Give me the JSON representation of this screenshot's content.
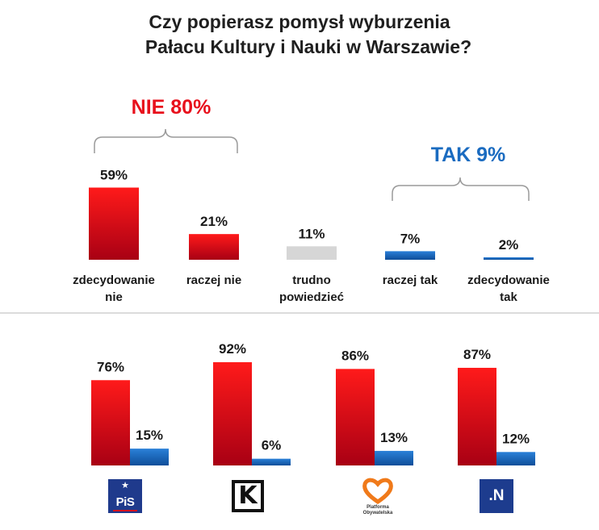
{
  "title": {
    "line1": "Czy popierasz pomysł wyburzenia",
    "line2": "Pałacu  Kultury i Nauki w Warszawie?"
  },
  "colors": {
    "red": "#e8101c",
    "blue": "#1a63b8",
    "gray": "#d6d6d6",
    "nie_text": "#e8101c",
    "tak_text": "#1a6bc0"
  },
  "groups": {
    "nie": "NIE 80%",
    "tak": "TAK 9%"
  },
  "chart_data": [
    {
      "type": "bar",
      "title": "Czy popierasz pomysł wyburzenia Pałacu Kultury i Nauki w Warszawie?",
      "categories": [
        [
          "zdecydowanie",
          "nie"
        ],
        [
          "raczej nie"
        ],
        [
          "trudno",
          "powiedzieć"
        ],
        [
          "raczej tak"
        ],
        [
          "zdecydowanie",
          "tak"
        ]
      ],
      "values": [
        59,
        21,
        11,
        7,
        2
      ],
      "labels": [
        "59%",
        "21%",
        "11%",
        "7%",
        "2%"
      ],
      "bar_colors": [
        "red",
        "red",
        "gray",
        "blue",
        "blue"
      ],
      "ylim": [
        0,
        60
      ],
      "xlabel": "",
      "ylabel": ""
    },
    {
      "type": "bar",
      "categories": [
        "PiS",
        "Kukiz'15",
        "Platforma Obywatelska",
        "Nowoczesna"
      ],
      "series": [
        {
          "name": "NIE",
          "values": [
            76,
            92,
            86,
            87
          ],
          "labels": [
            "76%",
            "92%",
            "86%",
            "87%"
          ],
          "color": "red"
        },
        {
          "name": "TAK",
          "values": [
            15,
            6,
            13,
            12
          ],
          "labels": [
            "15%",
            "6%",
            "13%",
            "12%"
          ],
          "color": "blue"
        }
      ],
      "ylim": [
        0,
        92
      ],
      "xlabel": "",
      "ylabel": ""
    }
  ],
  "logos": {
    "pis": "PiS",
    "kukiz": "K",
    "po": "Platforma Obywatelska",
    "n": ".N"
  }
}
